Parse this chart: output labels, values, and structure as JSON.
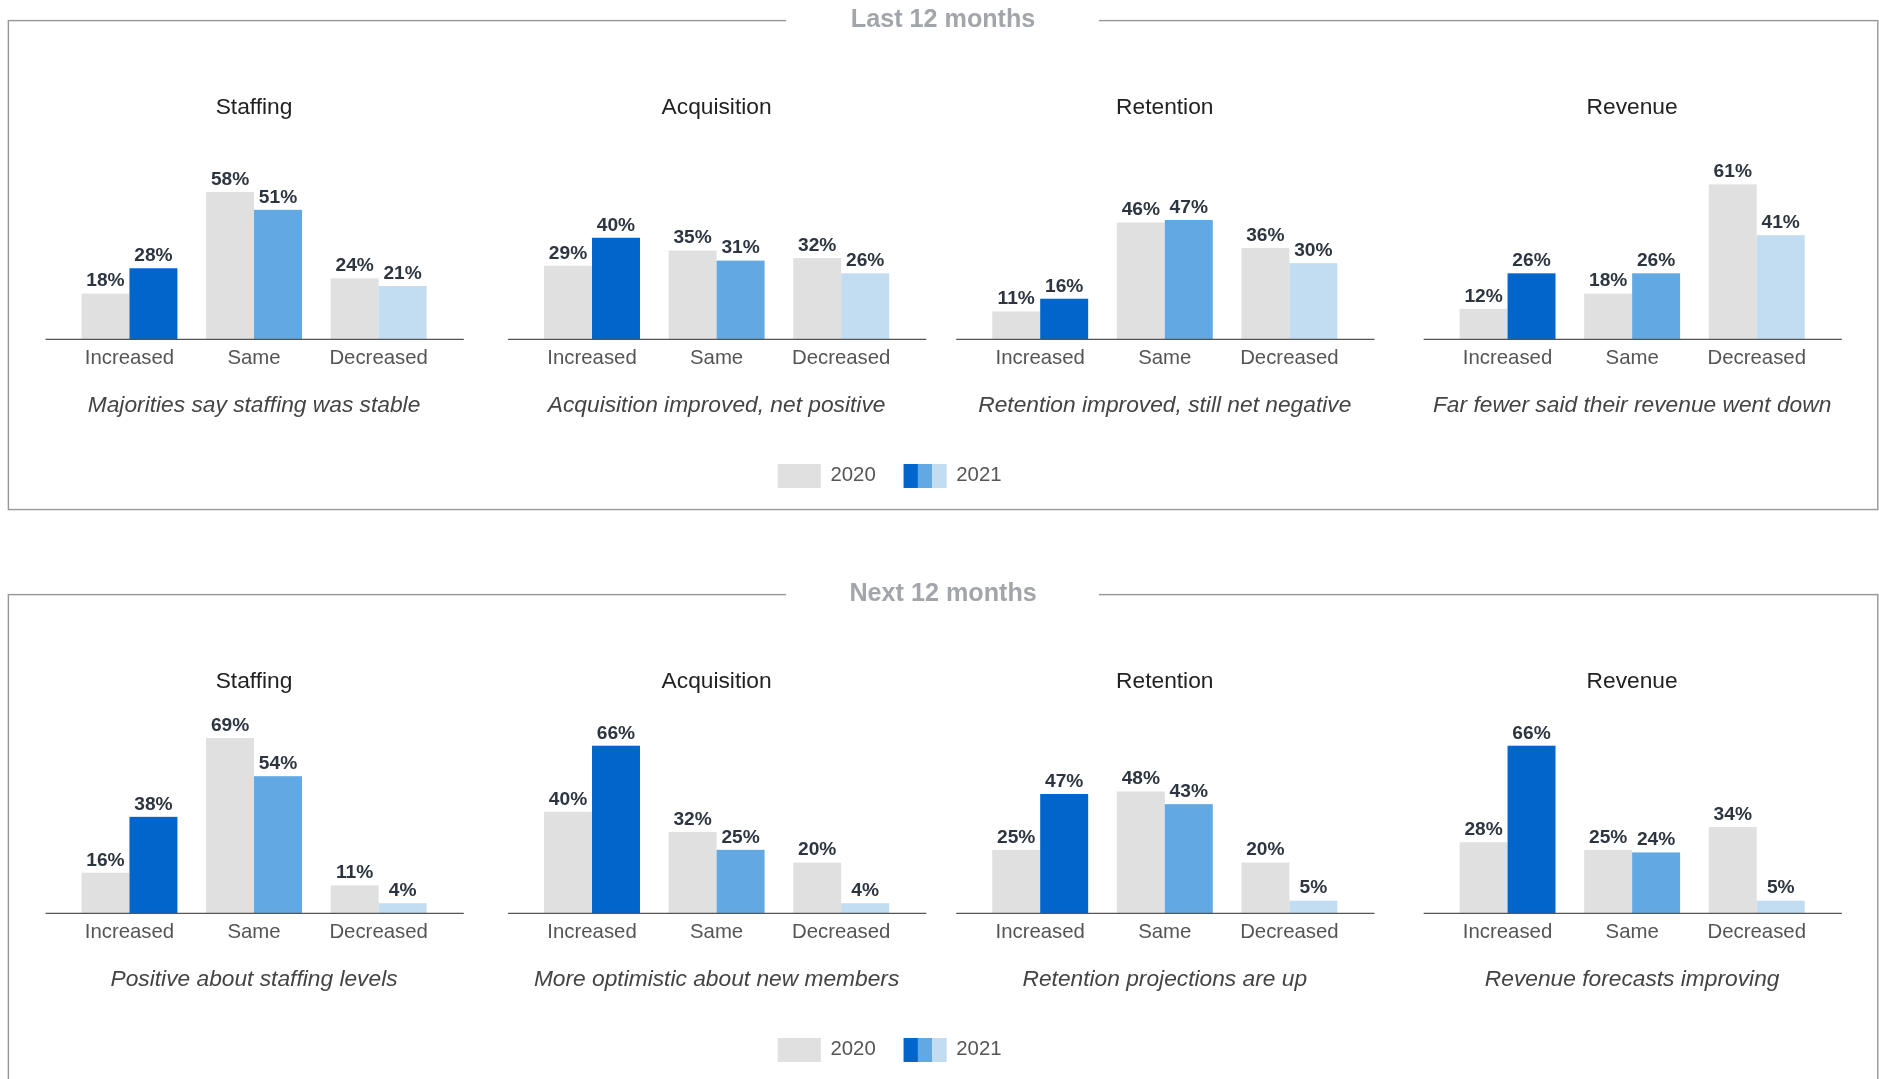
{
  "chart_data": [
    {
      "type": "bar",
      "title": "Staffing",
      "subtitle": "Majorities say staffing was stable",
      "annotations": [
        "Last 12 months"
      ],
      "legend": "bottom",
      "categories": [
        "Increased",
        "Same",
        "Decreased"
      ],
      "series": [
        {
          "name": "2020",
          "color": "#e0e0e0",
          "values": [
            18,
            58,
            24
          ],
          "value_labels": [
            "18%",
            "58%",
            "24%"
          ]
        },
        {
          "name": "2021",
          "colors": [
            "#0066cc",
            "#62a8e2",
            "#c2dcf2"
          ],
          "values": [
            28,
            51,
            21
          ],
          "value_labels": [
            "28%",
            "51%",
            "21%"
          ]
        }
      ]
    },
    {
      "type": "bar",
      "title": "Acquisition",
      "subtitle": "Acquisition improved, net positive",
      "categories": [
        "Increased",
        "Same",
        "Decreased"
      ],
      "series": [
        {
          "color": "#e0e0e0",
          "values": [
            29,
            35,
            32
          ],
          "value_labels": [
            "29%",
            "35%",
            "32%"
          ]
        },
        {
          "colors": [
            "#0066cc",
            "#62a8e2",
            "#c2dcf2"
          ],
          "values": [
            40,
            31,
            26
          ],
          "value_labels": [
            "40%",
            "31%",
            "26%"
          ]
        }
      ]
    },
    {
      "type": "bar",
      "title": "Retention",
      "subtitle": "Retention improved, still net negative",
      "categories": [
        "Increased",
        "Same",
        "Decreased"
      ],
      "series": [
        {
          "color": "#e0e0e0",
          "values": [
            11,
            46,
            36
          ],
          "value_labels": [
            "11%",
            "46%",
            "36%"
          ]
        },
        {
          "colors": [
            "#0066cc",
            "#62a8e2",
            "#c2dcf2"
          ],
          "values": [
            16,
            47,
            30
          ],
          "value_labels": [
            "16%",
            "47%",
            "30%"
          ]
        }
      ]
    },
    {
      "type": "bar",
      "title": "Revenue",
      "subtitle": "Far fewer said their revenue went down",
      "categories": [
        "Increased",
        "Same",
        "Decreased"
      ],
      "series": [
        {
          "color": "#e0e0e0",
          "values": [
            12,
            18,
            61
          ],
          "value_labels": [
            "12%",
            "18%",
            "61%"
          ]
        },
        {
          "colors": [
            "#0066cc",
            "#62a8e2",
            "#c2dcf2"
          ],
          "values": [
            26,
            26,
            41
          ],
          "value_labels": [
            "26%",
            "26%",
            "41%"
          ]
        }
      ]
    },
    {
      "type": "bar",
      "title": "Staffing",
      "subtitle": "Positive about staffing levels",
      "annotations": [
        "Next 12 months"
      ],
      "legend": "bottom",
      "categories": [
        "Increased",
        "Same",
        "Decreased"
      ],
      "series": [
        {
          "name": "2020",
          "color": "#e0e0e0",
          "values": [
            16,
            69,
            11
          ],
          "value_labels": [
            "16%",
            "69%",
            "11%"
          ]
        },
        {
          "name": "2021",
          "colors": [
            "#0066cc",
            "#62a8e2",
            "#c2dcf2"
          ],
          "values": [
            38,
            54,
            4
          ],
          "value_labels": [
            "38%",
            "54%",
            "4%"
          ]
        }
      ]
    },
    {
      "type": "bar",
      "title": "Acquisition",
      "subtitle": "More optimistic about new members",
      "categories": [
        "Increased",
        "Same",
        "Decreased"
      ],
      "series": [
        {
          "color": "#e0e0e0",
          "values": [
            40,
            32,
            20
          ],
          "value_labels": [
            "40%",
            "32%",
            "20%"
          ]
        },
        {
          "colors": [
            "#0066cc",
            "#62a8e2",
            "#c2dcf2"
          ],
          "values": [
            66,
            25,
            4
          ],
          "value_labels": [
            "66%",
            "25%",
            "4%"
          ]
        }
      ]
    },
    {
      "type": "bar",
      "title": "Retention",
      "subtitle": "Retention projections are up",
      "categories": [
        "Increased",
        "Same",
        "Decreased"
      ],
      "series": [
        {
          "color": "#e0e0e0",
          "values": [
            25,
            48,
            20
          ],
          "value_labels": [
            "25%",
            "48%",
            "20%"
          ]
        },
        {
          "colors": [
            "#0066cc",
            "#62a8e2",
            "#c2dcf2"
          ],
          "values": [
            47,
            43,
            5
          ],
          "value_labels": [
            "47%",
            "43%",
            "5%"
          ]
        }
      ]
    },
    {
      "type": "bar",
      "title": "Revenue",
      "subtitle": "Revenue forecasts improving",
      "categories": [
        "Increased",
        "Same",
        "Decreased"
      ],
      "series": [
        {
          "color": "#e0e0e0",
          "values": [
            28,
            25,
            34
          ],
          "value_labels": [
            "28%",
            "25%",
            "34%"
          ]
        },
        {
          "colors": [
            "#0066cc",
            "#62a8e2",
            "#c2dcf2"
          ],
          "values": [
            66,
            24,
            5
          ],
          "value_labels": [
            "66%",
            "24%",
            "5%"
          ]
        }
      ]
    }
  ]
}
